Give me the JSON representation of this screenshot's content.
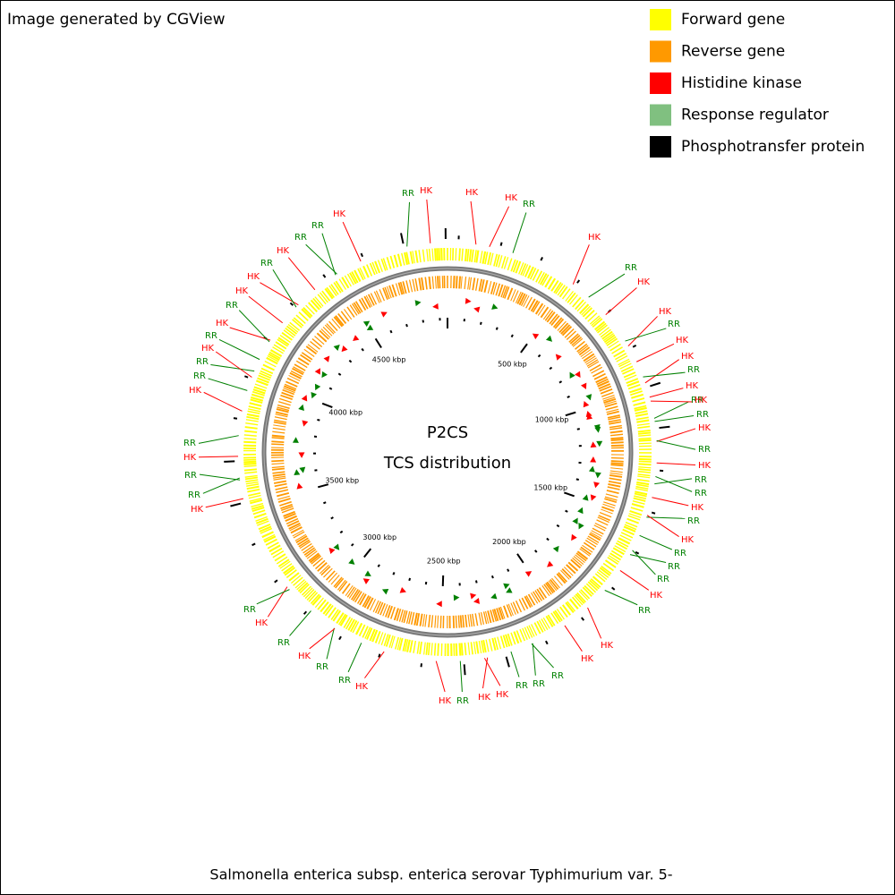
{
  "header": {
    "credit": "Image generated by CGView"
  },
  "legend": [
    {
      "label": "Forward gene",
      "color": "#ffff00"
    },
    {
      "label": "Reverse gene",
      "color": "#ff9900"
    },
    {
      "label": "Histidine kinase",
      "color": "#ff0000"
    },
    {
      "label": "Response regulator",
      "color": "#80c080"
    },
    {
      "label": "Phosphotransfer protein",
      "color": "#000000"
    }
  ],
  "center": {
    "title": "P2CS",
    "subtitle": "TCS distribution"
  },
  "ruler_labels": [
    "500 kbp",
    "1000 kbp",
    "1500 kbp",
    "2000 kbp",
    "2500 kbp",
    "3000 kbp",
    "3500 kbp",
    "4000 kbp",
    "4500 kbp"
  ],
  "feature_labels": [
    "RR",
    "HK",
    "HK",
    "HK",
    "RR",
    "HK",
    "RR",
    "HK",
    "HK",
    "RR",
    "HK",
    "HK",
    "RR",
    "HK",
    "RR",
    "HK",
    "RR",
    "HK",
    "RR",
    "HK",
    "RR",
    "RR",
    "HK",
    "RR",
    "HK",
    "RR",
    "RR",
    "RR",
    "HK",
    "RR",
    "HK",
    "HK",
    "RR",
    "RR",
    "RR",
    "HK",
    "HK",
    "RR",
    "HK",
    "HK",
    "RR",
    "RR",
    "HK",
    "RR",
    "HK",
    "RR",
    "HK",
    "RR",
    "RR",
    "HK",
    "RR",
    "HK",
    "RR",
    "RR",
    "HK",
    "RR",
    "HK",
    "RR",
    "HK",
    "HK",
    "RR",
    "HK",
    "RR",
    "RR",
    "HK"
  ],
  "footer": {
    "organism": "Salmonella enterica subsp. enterica serovar Typhimurium var. 5-"
  }
}
